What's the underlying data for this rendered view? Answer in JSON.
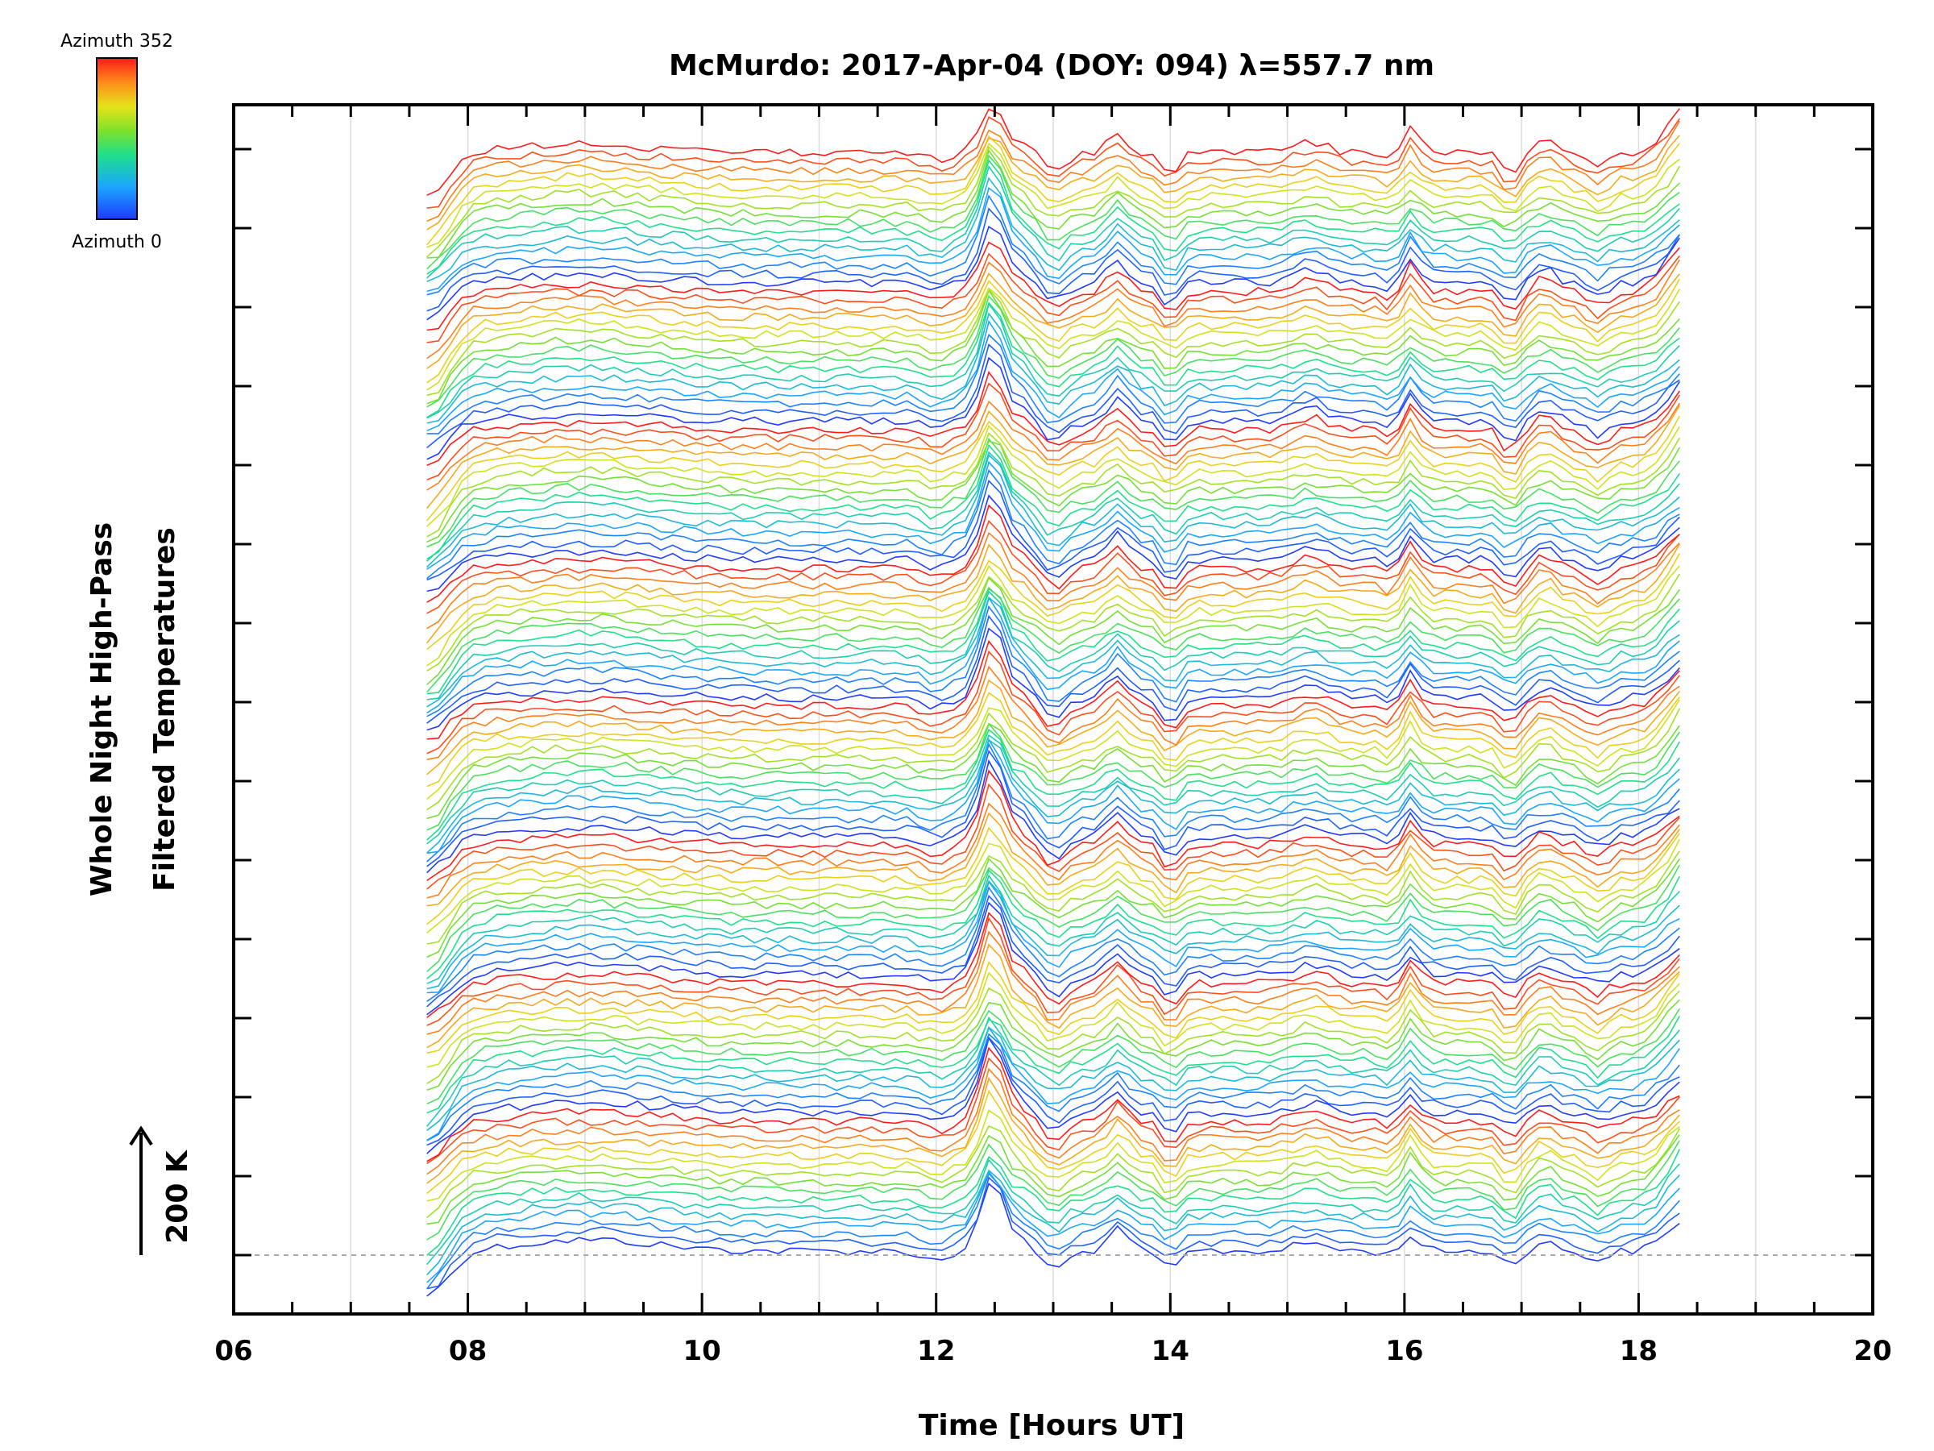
{
  "chart_data": {
    "type": "line",
    "title": "McMurdo: 2017-Apr-04 (DOY: 094) λ=557.7 nm",
    "xlabel": "Time [Hours UT]",
    "ylabel_line1": "Whole Night High-Pass",
    "ylabel_line2": "Filtered Temperatures",
    "xlim": [
      6,
      20
    ],
    "x_ticks": [
      "06",
      "08",
      "10",
      "12",
      "14",
      "16",
      "18",
      "20"
    ],
    "grid": true,
    "scale_bar_label": "200 K",
    "colorbar": {
      "top_label": "Azimuth 352",
      "bottom_label": "Azimuth 0",
      "colormap": "rainbow"
    },
    "data_range_hours": [
      7.65,
      18.4
    ],
    "stack": {
      "n_traces": 128,
      "groups": 8,
      "per_group": 16,
      "azimuth_min": 0,
      "azimuth_max": 352
    },
    "description_values": {
      "major_disturbance_hours": [
        12.45,
        13.55,
        14.0,
        16.0,
        16.9,
        17.7,
        18.3
      ],
      "dip_hours": [
        12.0,
        13.0,
        13.9,
        15.9,
        16.95,
        17.55
      ]
    }
  }
}
